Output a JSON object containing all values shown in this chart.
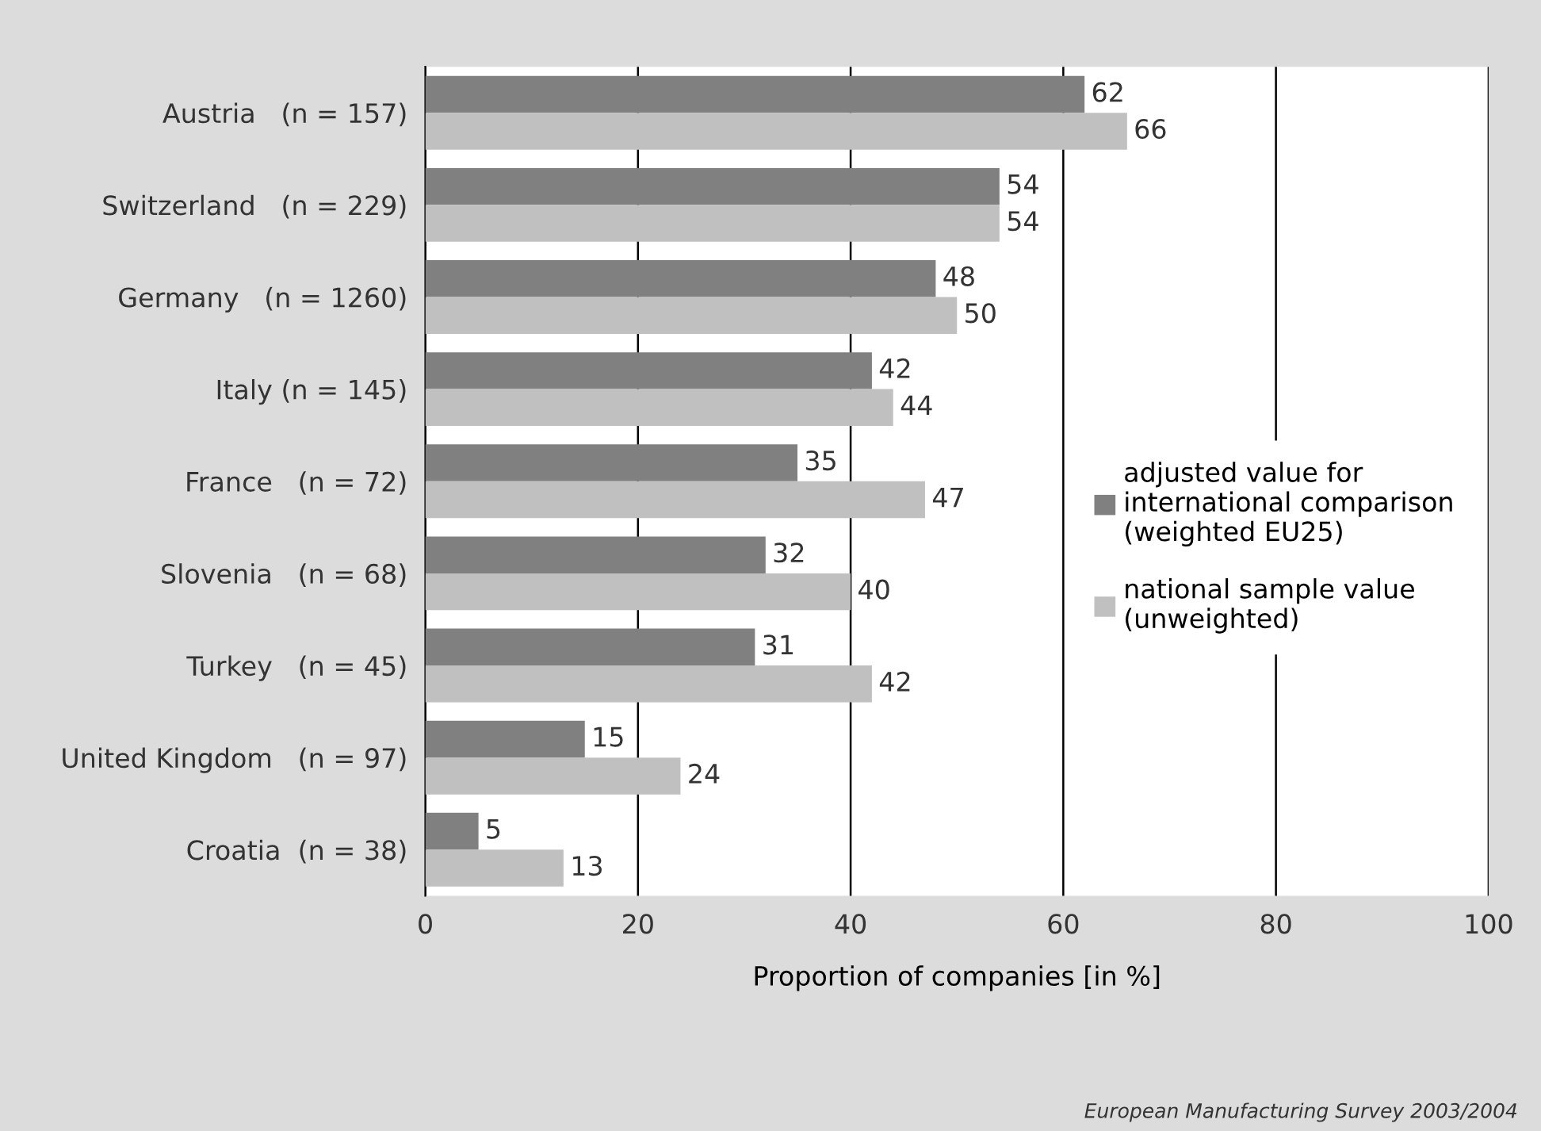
{
  "chart_data": {
    "type": "bar",
    "orientation": "horizontal",
    "categories": [
      "Austria   (n = 157)",
      "Switzerland   (n = 229)",
      "Germany   (n = 1260)",
      "Italy (n = 145)",
      "France   (n = 72)",
      "Slovenia   (n = 68)",
      "Turkey   (n = 45)",
      "United Kingdom   (n = 97)",
      "Croatia  (n = 38)"
    ],
    "series": [
      {
        "name": "adjusted value for\ninternational comparison\n(weighted EU25)",
        "color": "#808080",
        "values": [
          62,
          54,
          48,
          42,
          35,
          32,
          31,
          15,
          5
        ]
      },
      {
        "name": "national sample value\n(unweighted)",
        "color": "#c0c0c0",
        "values": [
          66,
          54,
          50,
          44,
          47,
          40,
          42,
          24,
          13
        ]
      }
    ],
    "xlabel": "Proportion of companies [in %]",
    "xlim": [
      0,
      100
    ],
    "xticks": [
      0,
      20,
      40,
      60,
      80,
      100
    ],
    "grid": "x",
    "legend": "right",
    "data_labels": true,
    "annotations": [
      "European Manufacturing Survey 2003/2004"
    ]
  }
}
